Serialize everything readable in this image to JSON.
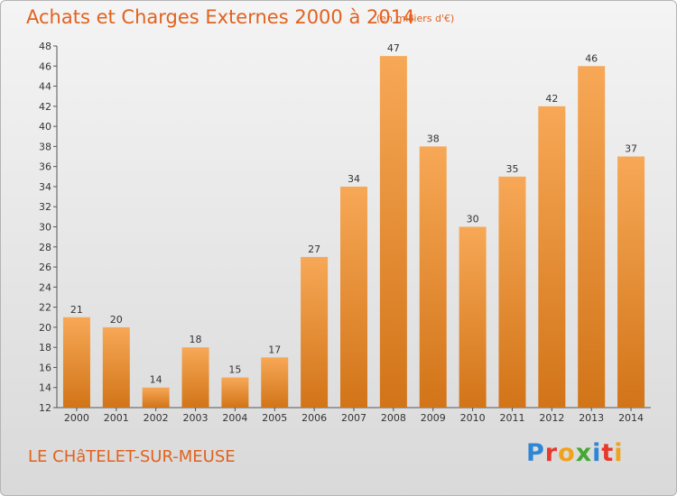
{
  "header": {
    "title": "Achats et Charges Externes 2000 à 2014",
    "subtitle": "(en milliers d'€)"
  },
  "footer": {
    "location": "LE CHâTELET-SUR-MEUSE",
    "brand": [
      "P",
      "r",
      "o",
      "x",
      "i",
      "t",
      "i"
    ]
  },
  "colors": {
    "bar_light": "#f7a856",
    "bar_dark": "#d27418",
    "title": "#e1621f"
  },
  "chart_data": {
    "type": "bar",
    "title": "Achats et Charges Externes 2000 à 2014",
    "subtitle": "(en milliers d'€)",
    "categories": [
      "2000",
      "2001",
      "2002",
      "2003",
      "2004",
      "2005",
      "2006",
      "2007",
      "2008",
      "2009",
      "2010",
      "2011",
      "2012",
      "2013",
      "2014"
    ],
    "values": [
      21,
      20,
      14,
      18,
      15,
      17,
      27,
      34,
      47,
      38,
      30,
      35,
      42,
      46,
      37
    ],
    "ylim": [
      12,
      48
    ],
    "yticks": [
      12,
      14,
      16,
      18,
      20,
      22,
      24,
      26,
      28,
      30,
      32,
      34,
      36,
      38,
      40,
      42,
      44,
      46,
      48
    ],
    "grid": false,
    "legend": "none"
  }
}
